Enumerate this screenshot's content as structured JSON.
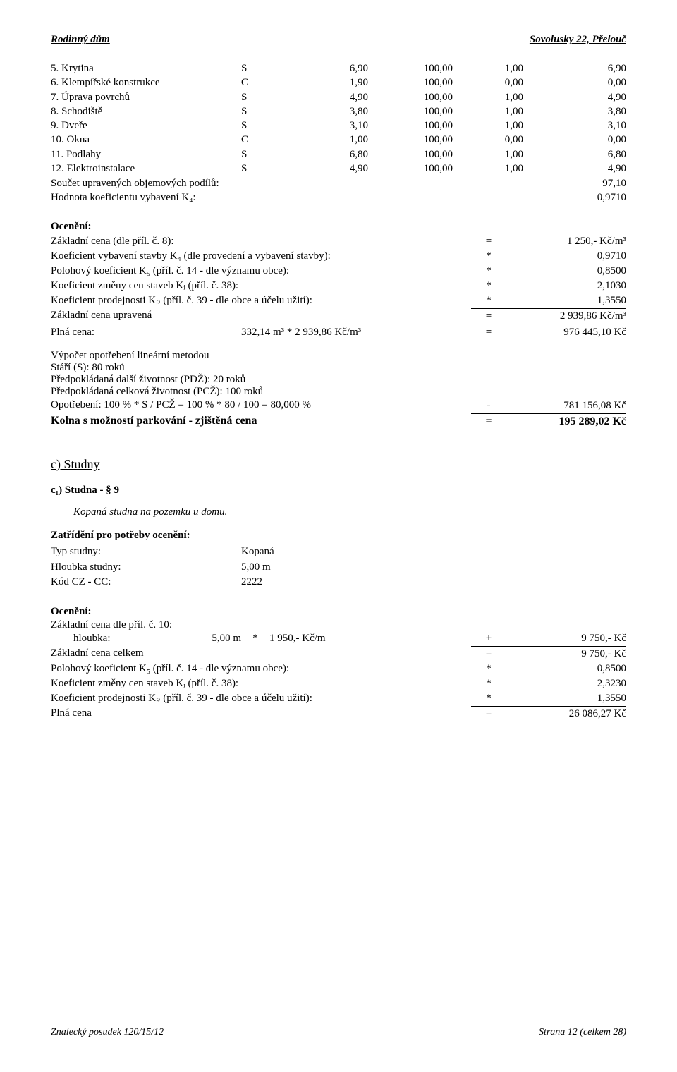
{
  "header": {
    "left": "Rodinný dům",
    "right": "Sovolusky 22, Přelouč"
  },
  "items": [
    {
      "label": "5. Krytina",
      "typ": "S",
      "a": "6,90",
      "b": "100,00",
      "c": "1,00",
      "d": "6,90"
    },
    {
      "label": "6. Klempířské konstrukce",
      "typ": "C",
      "a": "1,90",
      "b": "100,00",
      "c": "0,00",
      "d": "0,00"
    },
    {
      "label": "7. Úprava povrchů",
      "typ": "S",
      "a": "4,90",
      "b": "100,00",
      "c": "1,00",
      "d": "4,90"
    },
    {
      "label": "8. Schodiště",
      "typ": "S",
      "a": "3,80",
      "b": "100,00",
      "c": "1,00",
      "d": "3,80"
    },
    {
      "label": "9. Dveře",
      "typ": "S",
      "a": "3,10",
      "b": "100,00",
      "c": "1,00",
      "d": "3,10"
    },
    {
      "label": "10. Okna",
      "typ": "C",
      "a": "1,00",
      "b": "100,00",
      "c": "0,00",
      "d": "0,00"
    },
    {
      "label": "11. Podlahy",
      "typ": "S",
      "a": "6,80",
      "b": "100,00",
      "c": "1,00",
      "d": "6,80"
    },
    {
      "label": "12. Elektroinstalace",
      "typ": "S",
      "a": "4,90",
      "b": "100,00",
      "c": "1,00",
      "d": "4,90"
    }
  ],
  "sumRows": [
    {
      "l": "Součet upravených objemových podílů:",
      "r": "97,10"
    },
    {
      "l": "Hodnota koeficientu vybavení K₄:",
      "r": "0,9710"
    }
  ],
  "oceneni": "Ocenění:",
  "calc1": [
    {
      "l": "Základní cena (dle příl. č. 8):",
      "m": "=",
      "r": "1 250,- Kč/m³"
    },
    {
      "l": "Koeficient vybavení stavby K₄ (dle provedení a vybavení stavby):",
      "m": "*",
      "r": "0,9710"
    },
    {
      "l": "Polohový koeficient K₅ (příl. č. 14 - dle významu obce):",
      "m": "*",
      "r": "0,8500"
    },
    {
      "l": "Koeficient změny cen staveb Kᵢ (příl. č. 38):",
      "m": "*",
      "r": "2,1030"
    },
    {
      "l": "Koeficient prodejnosti Kₚ (příl. č. 39 - dle obce a účelu užití):",
      "m": "*",
      "r": "1,3550"
    }
  ],
  "upravena": {
    "l": "Základní cena upravená",
    "m": "=",
    "r": "2 939,86 Kč/m³"
  },
  "plna": {
    "l": "Plná cena:",
    "mid": "332,14 m³ * 2 939,86 Kč/m³",
    "m": "=",
    "r": "976 445,10 Kč"
  },
  "vypocet": [
    "Výpočet opotřebení lineární metodou",
    "Stáří (S): 80 roků",
    "Předpokládaná další životnost (PDŽ): 20 roků",
    "Předpokládaná celková životnost (PCŽ): 100 roků"
  ],
  "opotreb": {
    "l": "Opotřebení: 100 % * S / PCŽ = 100 % * 80 / 100 = 80,000 %",
    "m": "-",
    "r": "781 156,08 Kč"
  },
  "final1": {
    "l": "Kolna s možností parkování - zjištěná cena",
    "m": "=",
    "r": "195 289,02 Kč"
  },
  "sectionC": "c) Studny",
  "sectionC1": "c₁) Studna - § 9",
  "italic": "Kopaná studna na pozemku u domu.",
  "zatr": "Zatřídění pro potřeby ocenění:",
  "props": [
    {
      "l": "Typ studny:",
      "r": "Kopaná"
    },
    {
      "l": "Hloubka studny:",
      "r": "5,00 m"
    },
    {
      "l": "Kód CZ - CC:",
      "r": "2222"
    }
  ],
  "oceneni2": "Ocenění:",
  "zc10": "Základní cena dle příl. č. 10:",
  "hloubka": {
    "h1": "hloubka:",
    "h2": "5,00 m",
    "h3": "*",
    "h4": "1 950,- Kč/m",
    "h5": "+",
    "h6": "9 750,- Kč"
  },
  "zcCelkem": {
    "l": "Základní cena celkem",
    "m": "=",
    "r": "9 750,- Kč"
  },
  "calc2": [
    {
      "l": "Polohový koeficient K₅ (příl. č. 14 - dle významu obce):",
      "m": "*",
      "r": "0,8500"
    },
    {
      "l": "Koeficient změny cen staveb Kᵢ (příl. č. 38):",
      "m": "*",
      "r": "2,3230"
    },
    {
      "l": "Koeficient prodejnosti Kₚ (příl. č. 39 - dle obce a účelu užití):",
      "m": "*",
      "r": "1,3550"
    }
  ],
  "plna2": {
    "l": "Plná cena",
    "m": "=",
    "r": "26 086,27 Kč"
  },
  "footer": {
    "left": "Znalecký posudek 120/15/12",
    "right": "Strana 12 (celkem 28)"
  }
}
